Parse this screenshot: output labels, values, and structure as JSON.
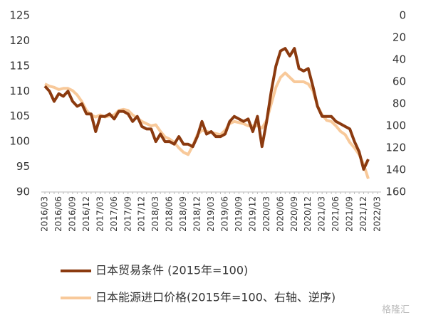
{
  "chart_data": {
    "type": "line",
    "categories": [
      "2016/03",
      null,
      null,
      "2016/06",
      null,
      null,
      "2016/09",
      null,
      null,
      "2016/12",
      null,
      null,
      "2017/03",
      null,
      null,
      "2017/06",
      null,
      null,
      "2017/09",
      null,
      null,
      "2017/12",
      null,
      null,
      "2018/03",
      null,
      null,
      "2018/06",
      null,
      null,
      "2018/09",
      null,
      null,
      "2018/12",
      null,
      null,
      "2019/03",
      null,
      null,
      "2019/06",
      null,
      null,
      "2019/09",
      null,
      null,
      "2019/12",
      null,
      null,
      "2020/03",
      null,
      null,
      "2020/06",
      null,
      null,
      "2020/09",
      null,
      null,
      "2020/12",
      null,
      null,
      "2021/03",
      null,
      null,
      "2021/06",
      null,
      null,
      "2021/09",
      null,
      null,
      "2021/12",
      null,
      null,
      "2022/03"
    ],
    "series": [
      {
        "name": "日本贸易条件 (2015年=100)",
        "color": "#8b3a0f",
        "values": [
          111,
          110,
          108,
          109.5,
          109,
          110,
          108,
          107,
          107.5,
          105.5,
          105.5,
          102,
          105,
          105,
          105.5,
          104.5,
          106,
          106,
          105.5,
          104,
          105,
          103,
          102.5,
          102.5,
          100,
          101.5,
          100,
          100,
          99.5,
          101,
          99.5,
          99.5,
          99,
          101,
          104,
          101.5,
          102,
          101,
          101,
          101.5,
          104,
          105,
          104.5,
          104,
          104.5,
          102,
          105,
          99,
          104,
          110,
          115,
          118,
          118.5,
          117,
          118.5,
          114.5,
          114,
          114.5,
          111,
          107,
          105,
          105,
          105,
          104,
          103.5,
          103,
          102.5,
          100,
          98,
          94.5,
          96.5,
          null,
          null
        ]
      },
      {
        "name": "日本能源进口价格(2015年=100、右轴、逆序)",
        "color": "#f8c99a",
        "axis": "y2",
        "values": [
          62,
          64,
          65,
          67,
          66,
          66,
          68,
          72,
          78,
          86,
          90,
          92,
          90,
          92,
          91,
          90,
          86,
          85,
          86,
          90,
          93,
          96,
          98,
          100,
          99,
          105,
          110,
          112,
          115,
          120,
          124,
          126,
          118,
          108,
          104,
          105,
          106,
          107,
          108,
          104,
          98,
          96,
          97,
          98,
          100,
          100,
          100,
          102,
          95,
          80,
          65,
          56,
          52,
          56,
          60,
          60,
          60,
          62,
          68,
          82,
          90,
          95,
          96,
          100,
          105,
          108,
          115,
          120,
          126,
          135,
          148,
          null,
          null
        ]
      }
    ],
    "ylim": [
      90,
      125
    ],
    "yticks": [
      90,
      95,
      100,
      105,
      110,
      115,
      120,
      125
    ],
    "y2lim": [
      0,
      160
    ],
    "y2ticks": [
      0,
      20,
      40,
      60,
      80,
      100,
      120,
      140,
      160
    ],
    "y2_inverted": true,
    "legend": "bottom",
    "watermark": "格隆汇"
  }
}
